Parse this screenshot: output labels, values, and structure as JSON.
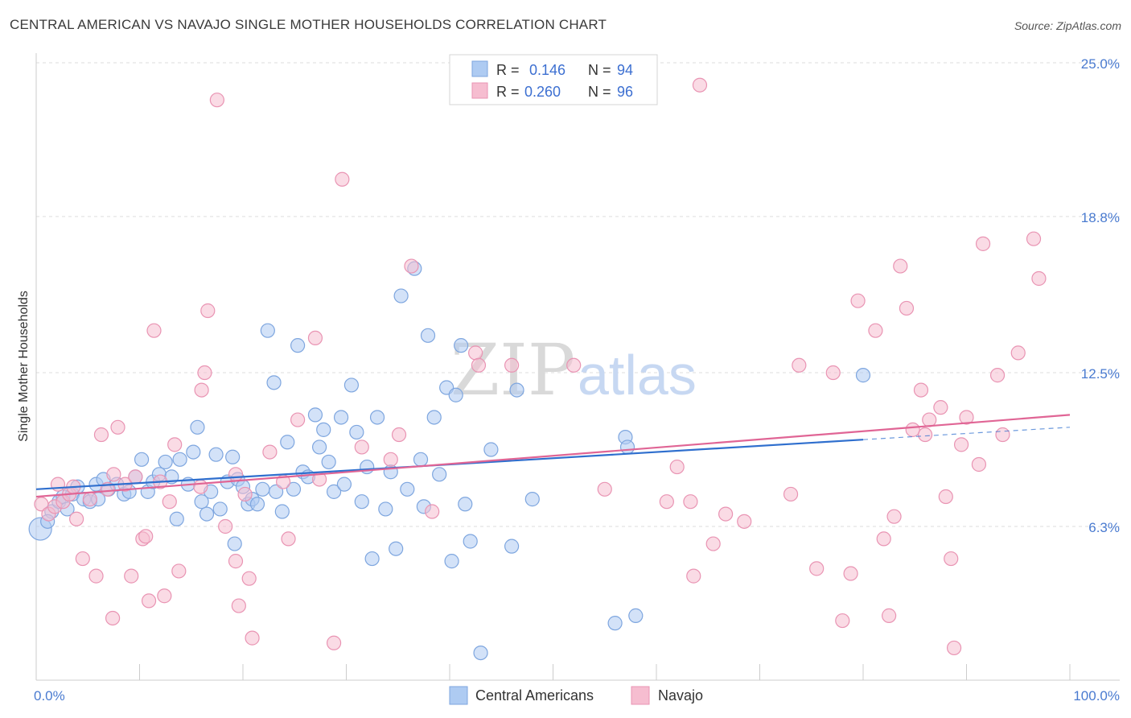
{
  "title": "CENTRAL AMERICAN VS NAVAJO SINGLE MOTHER HOUSEHOLDS CORRELATION CHART",
  "source": "Source: ZipAtlas.com",
  "watermark": {
    "zip": "ZIP",
    "atlas": "atlas"
  },
  "colors": {
    "blue_fill": "#aecbf2",
    "blue_stroke": "#7ea6df",
    "blue_line": "#2f6fce",
    "pink_fill": "#f6bdd0",
    "pink_stroke": "#e994b3",
    "pink_line": "#e06595",
    "tick_label": "#4a7bd0",
    "grid": "#dddddd"
  },
  "legend": {
    "rows": [
      {
        "r_label": "R = ",
        "r_value": "0.146",
        "n_label": "N = ",
        "n_value": "94"
      },
      {
        "r_label": "R = ",
        "r_value": "0.260",
        "n_label": "N = ",
        "n_value": "96"
      }
    ]
  },
  "chart_data": {
    "type": "scatter",
    "title": "CENTRAL AMERICAN VS NAVAJO SINGLE MOTHER HOUSEHOLDS CORRELATION CHART",
    "ylabel": "Single Mother Households",
    "xlabel": "",
    "xlim": [
      0,
      100
    ],
    "ylim": [
      0,
      26
    ],
    "y_ticks": [
      6.3,
      12.5,
      18.8,
      25.0
    ],
    "y_tick_labels": [
      "6.3%",
      "12.5%",
      "18.8%",
      "25.0%"
    ],
    "x_tick_labels": [
      "0.0%",
      "100.0%"
    ],
    "grid": true,
    "legend_position": "top-center",
    "series": [
      {
        "name": "Central Americans",
        "r": 0.146,
        "n": 94,
        "trend": {
          "x0": 0,
          "y0": 7.8,
          "x1": 80,
          "y1": 9.8,
          "dashed_to_x": 100,
          "dashed_to_y": 10.3
        },
        "points": [
          [
            0.4,
            6.2
          ],
          [
            1.5,
            6.9
          ],
          [
            2.2,
            7.3
          ],
          [
            2.6,
            7.5
          ],
          [
            3.0,
            7.0
          ],
          [
            3.5,
            7.6
          ],
          [
            4.0,
            7.9
          ],
          [
            4.6,
            7.4
          ],
          [
            5.2,
            7.3
          ],
          [
            5.8,
            8.0
          ],
          [
            6.5,
            8.2
          ],
          [
            7.0,
            7.8
          ],
          [
            7.8,
            8.0
          ],
          [
            8.5,
            7.6
          ],
          [
            9.0,
            7.7
          ],
          [
            9.6,
            8.3
          ],
          [
            10.2,
            9.0
          ],
          [
            10.8,
            7.7
          ],
          [
            11.3,
            8.1
          ],
          [
            11.9,
            8.4
          ],
          [
            12.5,
            8.9
          ],
          [
            13.1,
            8.3
          ],
          [
            13.6,
            6.6
          ],
          [
            13.9,
            9.0
          ],
          [
            14.7,
            8.0
          ],
          [
            15.2,
            9.3
          ],
          [
            15.6,
            10.3
          ],
          [
            16.0,
            7.3
          ],
          [
            16.5,
            6.8
          ],
          [
            16.9,
            7.7
          ],
          [
            17.4,
            9.2
          ],
          [
            17.8,
            7.0
          ],
          [
            18.5,
            8.1
          ],
          [
            19.0,
            9.1
          ],
          [
            19.5,
            8.2
          ],
          [
            19.2,
            5.6
          ],
          [
            20.0,
            7.9
          ],
          [
            20.5,
            7.2
          ],
          [
            20.9,
            7.4
          ],
          [
            21.4,
            7.2
          ],
          [
            21.9,
            7.8
          ],
          [
            22.4,
            14.2
          ],
          [
            23.0,
            12.1
          ],
          [
            23.2,
            7.7
          ],
          [
            23.8,
            6.9
          ],
          [
            24.3,
            9.7
          ],
          [
            24.9,
            7.8
          ],
          [
            25.3,
            13.6
          ],
          [
            25.8,
            8.5
          ],
          [
            26.3,
            8.3
          ],
          [
            27.0,
            10.8
          ],
          [
            27.4,
            9.5
          ],
          [
            27.8,
            10.2
          ],
          [
            28.3,
            8.9
          ],
          [
            28.8,
            7.7
          ],
          [
            29.5,
            10.7
          ],
          [
            29.8,
            8.0
          ],
          [
            30.5,
            12.0
          ],
          [
            31.0,
            10.1
          ],
          [
            31.5,
            7.3
          ],
          [
            32.0,
            8.7
          ],
          [
            32.5,
            5.0
          ],
          [
            33.0,
            10.7
          ],
          [
            33.8,
            7.0
          ],
          [
            34.3,
            8.5
          ],
          [
            34.8,
            5.4
          ],
          [
            35.3,
            15.6
          ],
          [
            35.9,
            7.8
          ],
          [
            36.6,
            16.7
          ],
          [
            37.2,
            9.0
          ],
          [
            37.5,
            7.1
          ],
          [
            37.9,
            14.0
          ],
          [
            38.5,
            10.7
          ],
          [
            39.0,
            8.4
          ],
          [
            39.7,
            11.9
          ],
          [
            40.2,
            4.9
          ],
          [
            40.6,
            11.6
          ],
          [
            41.1,
            13.6
          ],
          [
            41.5,
            7.2
          ],
          [
            42.0,
            5.7
          ],
          [
            43.0,
            1.2
          ],
          [
            44.0,
            9.4
          ],
          [
            46.0,
            5.5
          ],
          [
            46.5,
            11.8
          ],
          [
            48.0,
            7.4
          ],
          [
            56.0,
            2.4
          ],
          [
            57.0,
            9.9
          ],
          [
            58.0,
            2.7
          ],
          [
            80.0,
            12.4
          ],
          [
            57.2,
            9.5
          ],
          [
            1.1,
            6.5
          ],
          [
            6.0,
            7.4
          ]
        ]
      },
      {
        "name": "Navajo",
        "r": 0.26,
        "n": 96,
        "trend": {
          "x0": 0,
          "y0": 7.5,
          "x1": 100,
          "y1": 10.8
        },
        "points": [
          [
            0.5,
            7.2
          ],
          [
            1.2,
            6.8
          ],
          [
            1.8,
            7.1
          ],
          [
            2.1,
            8.0
          ],
          [
            2.6,
            7.3
          ],
          [
            3.2,
            7.6
          ],
          [
            3.6,
            7.9
          ],
          [
            3.9,
            6.6
          ],
          [
            4.5,
            5.0
          ],
          [
            5.2,
            7.4
          ],
          [
            5.8,
            4.3
          ],
          [
            6.3,
            10.0
          ],
          [
            6.9,
            7.8
          ],
          [
            7.5,
            8.4
          ],
          [
            7.4,
            2.6
          ],
          [
            7.9,
            10.3
          ],
          [
            8.6,
            8.0
          ],
          [
            9.2,
            4.3
          ],
          [
            9.6,
            8.3
          ],
          [
            10.3,
            5.8
          ],
          [
            10.6,
            5.9
          ],
          [
            10.9,
            3.3
          ],
          [
            11.4,
            14.2
          ],
          [
            12.0,
            8.1
          ],
          [
            12.4,
            3.5
          ],
          [
            12.9,
            7.3
          ],
          [
            13.4,
            9.6
          ],
          [
            13.8,
            4.5
          ],
          [
            15.9,
            7.9
          ],
          [
            16.0,
            11.8
          ],
          [
            16.3,
            12.5
          ],
          [
            16.6,
            15.0
          ],
          [
            17.5,
            23.5
          ],
          [
            18.3,
            6.3
          ],
          [
            19.3,
            8.4
          ],
          [
            19.3,
            4.9
          ],
          [
            19.6,
            3.1
          ],
          [
            20.2,
            7.6
          ],
          [
            20.6,
            4.2
          ],
          [
            20.9,
            1.8
          ],
          [
            22.6,
            9.3
          ],
          [
            23.9,
            8.1
          ],
          [
            24.4,
            5.8
          ],
          [
            25.3,
            10.6
          ],
          [
            27.0,
            13.9
          ],
          [
            27.4,
            8.2
          ],
          [
            28.8,
            1.6
          ],
          [
            29.6,
            20.3
          ],
          [
            31.5,
            9.5
          ],
          [
            34.3,
            9.0
          ],
          [
            35.1,
            10.0
          ],
          [
            36.3,
            16.8
          ],
          [
            38.3,
            6.9
          ],
          [
            42.5,
            13.3
          ],
          [
            42.8,
            12.8
          ],
          [
            46.0,
            12.8
          ],
          [
            52.0,
            12.8
          ],
          [
            55.0,
            7.8
          ],
          [
            61.0,
            7.3
          ],
          [
            62.0,
            8.7
          ],
          [
            63.3,
            7.3
          ],
          [
            63.6,
            4.3
          ],
          [
            64.2,
            24.1
          ],
          [
            65.5,
            5.6
          ],
          [
            66.7,
            6.8
          ],
          [
            68.5,
            6.5
          ],
          [
            73.0,
            7.6
          ],
          [
            73.8,
            12.8
          ],
          [
            75.5,
            4.6
          ],
          [
            77.1,
            12.5
          ],
          [
            78.0,
            2.5
          ],
          [
            78.8,
            4.4
          ],
          [
            79.5,
            15.4
          ],
          [
            81.2,
            14.2
          ],
          [
            82.0,
            5.8
          ],
          [
            82.5,
            2.7
          ],
          [
            83.0,
            6.7
          ],
          [
            83.6,
            16.8
          ],
          [
            84.2,
            15.1
          ],
          [
            84.8,
            10.2
          ],
          [
            85.6,
            11.8
          ],
          [
            86.0,
            10.0
          ],
          [
            86.4,
            10.6
          ],
          [
            87.5,
            11.1
          ],
          [
            88.0,
            7.5
          ],
          [
            88.5,
            5.0
          ],
          [
            88.8,
            1.4
          ],
          [
            89.5,
            9.6
          ],
          [
            90.0,
            10.7
          ],
          [
            91.2,
            8.8
          ],
          [
            91.6,
            17.7
          ],
          [
            93.0,
            12.4
          ],
          [
            93.5,
            10.0
          ],
          [
            95.0,
            13.3
          ],
          [
            96.5,
            17.9
          ],
          [
            97.0,
            16.3
          ]
        ]
      }
    ]
  }
}
